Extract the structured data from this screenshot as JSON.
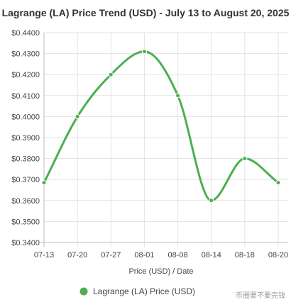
{
  "chart_data": {
    "type": "line",
    "title": "Lagrange (LA) Price Trend (USD) - July 13 to August 20, 2025",
    "xlabel": "Price (USD) / Date",
    "ylabel": "",
    "categories": [
      "07-13",
      "07-20",
      "07-27",
      "08-01",
      "08-08",
      "08-14",
      "08-18",
      "08-20"
    ],
    "y_ticks": [
      "$0.4400",
      "$0.4300",
      "$0.4200",
      "$0.4100",
      "$0.4000",
      "$0.3900",
      "$0.3800",
      "$0.3700",
      "$0.3600",
      "$0.3500",
      "$0.3400"
    ],
    "ylim": [
      0.34,
      0.44
    ],
    "series": [
      {
        "name": "Lagrange (LA) Price (USD)",
        "values": [
          0.3685,
          0.4,
          0.42,
          0.431,
          0.41,
          0.36,
          0.38,
          0.3685
        ],
        "color": "#4caf50"
      }
    ],
    "grid": true,
    "legend_position": "bottom"
  },
  "watermark": "币圈要不要完钱"
}
